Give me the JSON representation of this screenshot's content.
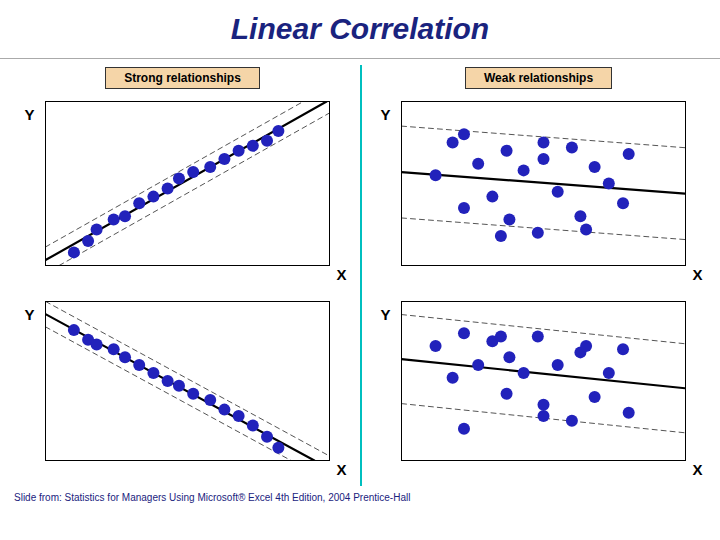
{
  "title": "Linear Correlation",
  "annotations": [
    "Slide from: Statistics for Managers Using Microsoft® Excel  4th Edition, 2004 Prentice-Hall"
  ],
  "chart_data": [
    {
      "type": "scatter",
      "title": "Strong relationships",
      "xlabel": "X",
      "ylabel": "Y",
      "xlim": [
        0,
        1
      ],
      "ylim": [
        0,
        1
      ],
      "xticks": [],
      "yticks": [],
      "tick_labels": false,
      "series": [
        {
          "type": "scatter",
          "color": "#2222bb",
          "marker": "circle",
          "x": [
            0.1,
            0.15,
            0.18,
            0.24,
            0.28,
            0.33,
            0.38,
            0.43,
            0.47,
            0.52,
            0.58,
            0.63,
            0.68,
            0.73,
            0.78,
            0.82
          ],
          "values": [
            0.08,
            0.15,
            0.22,
            0.28,
            0.3,
            0.38,
            0.42,
            0.47,
            0.53,
            0.57,
            0.6,
            0.65,
            0.7,
            0.73,
            0.76,
            0.82
          ]
        },
        {
          "type": "line",
          "color": "#555555",
          "line_style": "dashed",
          "x": [
            0,
            0.9079
          ],
          "values": [
            0.113,
            1
          ]
        },
        {
          "type": "line",
          "color": "#555555",
          "line_style": "dashed",
          "x": [
            0.0481,
            1
          ],
          "values": [
            0,
            0.93
          ]
        },
        {
          "type": "line",
          "color": "#000000",
          "line_style": "solid",
          "x": [
            0,
            0.9897
          ],
          "values": [
            0.033,
            1
          ]
        }
      ]
    },
    {
      "type": "scatter",
      "title": "Weak relationships",
      "xlabel": "X",
      "ylabel": "Y",
      "xlim": [
        0,
        1
      ],
      "ylim": [
        0,
        1
      ],
      "xticks": [],
      "yticks": [],
      "tick_labels": false,
      "series": [
        {
          "type": "scatter",
          "color": "#2222bb",
          "marker": "circle",
          "x": [
            0.12,
            0.18,
            0.22,
            0.27,
            0.32,
            0.37,
            0.38,
            0.43,
            0.48,
            0.5,
            0.55,
            0.6,
            0.63,
            0.68,
            0.73,
            0.78,
            0.22,
            0.35,
            0.5,
            0.65,
            0.8
          ],
          "values": [
            0.55,
            0.75,
            0.35,
            0.62,
            0.42,
            0.7,
            0.28,
            0.58,
            0.2,
            0.65,
            0.45,
            0.72,
            0.3,
            0.6,
            0.5,
            0.38,
            0.8,
            0.18,
            0.75,
            0.22,
            0.68
          ]
        },
        {
          "type": "line",
          "color": "#555555",
          "line_style": "dashed",
          "x": [
            0,
            1
          ],
          "values": [
            0.8499,
            0.718
          ]
        },
        {
          "type": "line",
          "color": "#555555",
          "line_style": "dashed",
          "x": [
            0,
            1
          ],
          "values": [
            0.2899,
            0.158
          ]
        },
        {
          "type": "line",
          "color": "#000000",
          "line_style": "solid",
          "x": [
            0,
            1
          ],
          "values": [
            0.5699,
            0.438
          ]
        }
      ]
    },
    {
      "type": "scatter",
      "xlabel": "X",
      "ylabel": "Y",
      "xlim": [
        0,
        1
      ],
      "ylim": [
        0,
        1
      ],
      "xticks": [],
      "yticks": [],
      "tick_labels": false,
      "series": [
        {
          "type": "scatter",
          "color": "#2222bb",
          "marker": "circle",
          "x": [
            0.1,
            0.15,
            0.18,
            0.24,
            0.28,
            0.33,
            0.38,
            0.43,
            0.47,
            0.52,
            0.58,
            0.63,
            0.68,
            0.73,
            0.78,
            0.82
          ],
          "values": [
            0.82,
            0.76,
            0.73,
            0.7,
            0.65,
            0.6,
            0.55,
            0.5,
            0.47,
            0.42,
            0.38,
            0.32,
            0.28,
            0.22,
            0.15,
            0.08
          ]
        },
        {
          "type": "line",
          "color": "#555555",
          "line_style": "dashed",
          "x": [
            0.0006,
            1
          ],
          "values": [
            1,
            0.0281
          ]
        },
        {
          "type": "line",
          "color": "#555555",
          "line_style": "dashed",
          "x": [
            0,
            0.8644
          ],
          "values": [
            0.8406,
            0
          ]
        },
        {
          "type": "line",
          "color": "#000000",
          "line_style": "solid",
          "x": [
            0,
            0.9466
          ],
          "values": [
            0.9206,
            0
          ]
        }
      ]
    },
    {
      "type": "scatter",
      "xlabel": "X",
      "ylabel": "Y",
      "xlim": [
        0,
        1
      ],
      "ylim": [
        0,
        1
      ],
      "xticks": [],
      "yticks": [],
      "tick_labels": false,
      "series": [
        {
          "type": "scatter",
          "color": "#2222bb",
          "marker": "circle",
          "x": [
            0.12,
            0.18,
            0.22,
            0.27,
            0.32,
            0.37,
            0.38,
            0.43,
            0.48,
            0.5,
            0.55,
            0.6,
            0.63,
            0.68,
            0.73,
            0.78,
            0.22,
            0.35,
            0.5,
            0.65,
            0.8
          ],
          "values": [
            0.72,
            0.52,
            0.8,
            0.6,
            0.75,
            0.42,
            0.65,
            0.55,
            0.78,
            0.35,
            0.6,
            0.25,
            0.68,
            0.4,
            0.55,
            0.7,
            0.2,
            0.78,
            0.28,
            0.72,
            0.3
          ]
        },
        {
          "type": "line",
          "color": "#555555",
          "line_style": "dashed",
          "x": [
            0,
            1
          ],
          "values": [
            0.9178,
            0.734
          ]
        },
        {
          "type": "line",
          "color": "#555555",
          "line_style": "dashed",
          "x": [
            0,
            1
          ],
          "values": [
            0.3578,
            0.174
          ]
        },
        {
          "type": "line",
          "color": "#000000",
          "line_style": "solid",
          "x": [
            0,
            1
          ],
          "values": [
            0.6378,
            0.454
          ]
        }
      ]
    }
  ]
}
